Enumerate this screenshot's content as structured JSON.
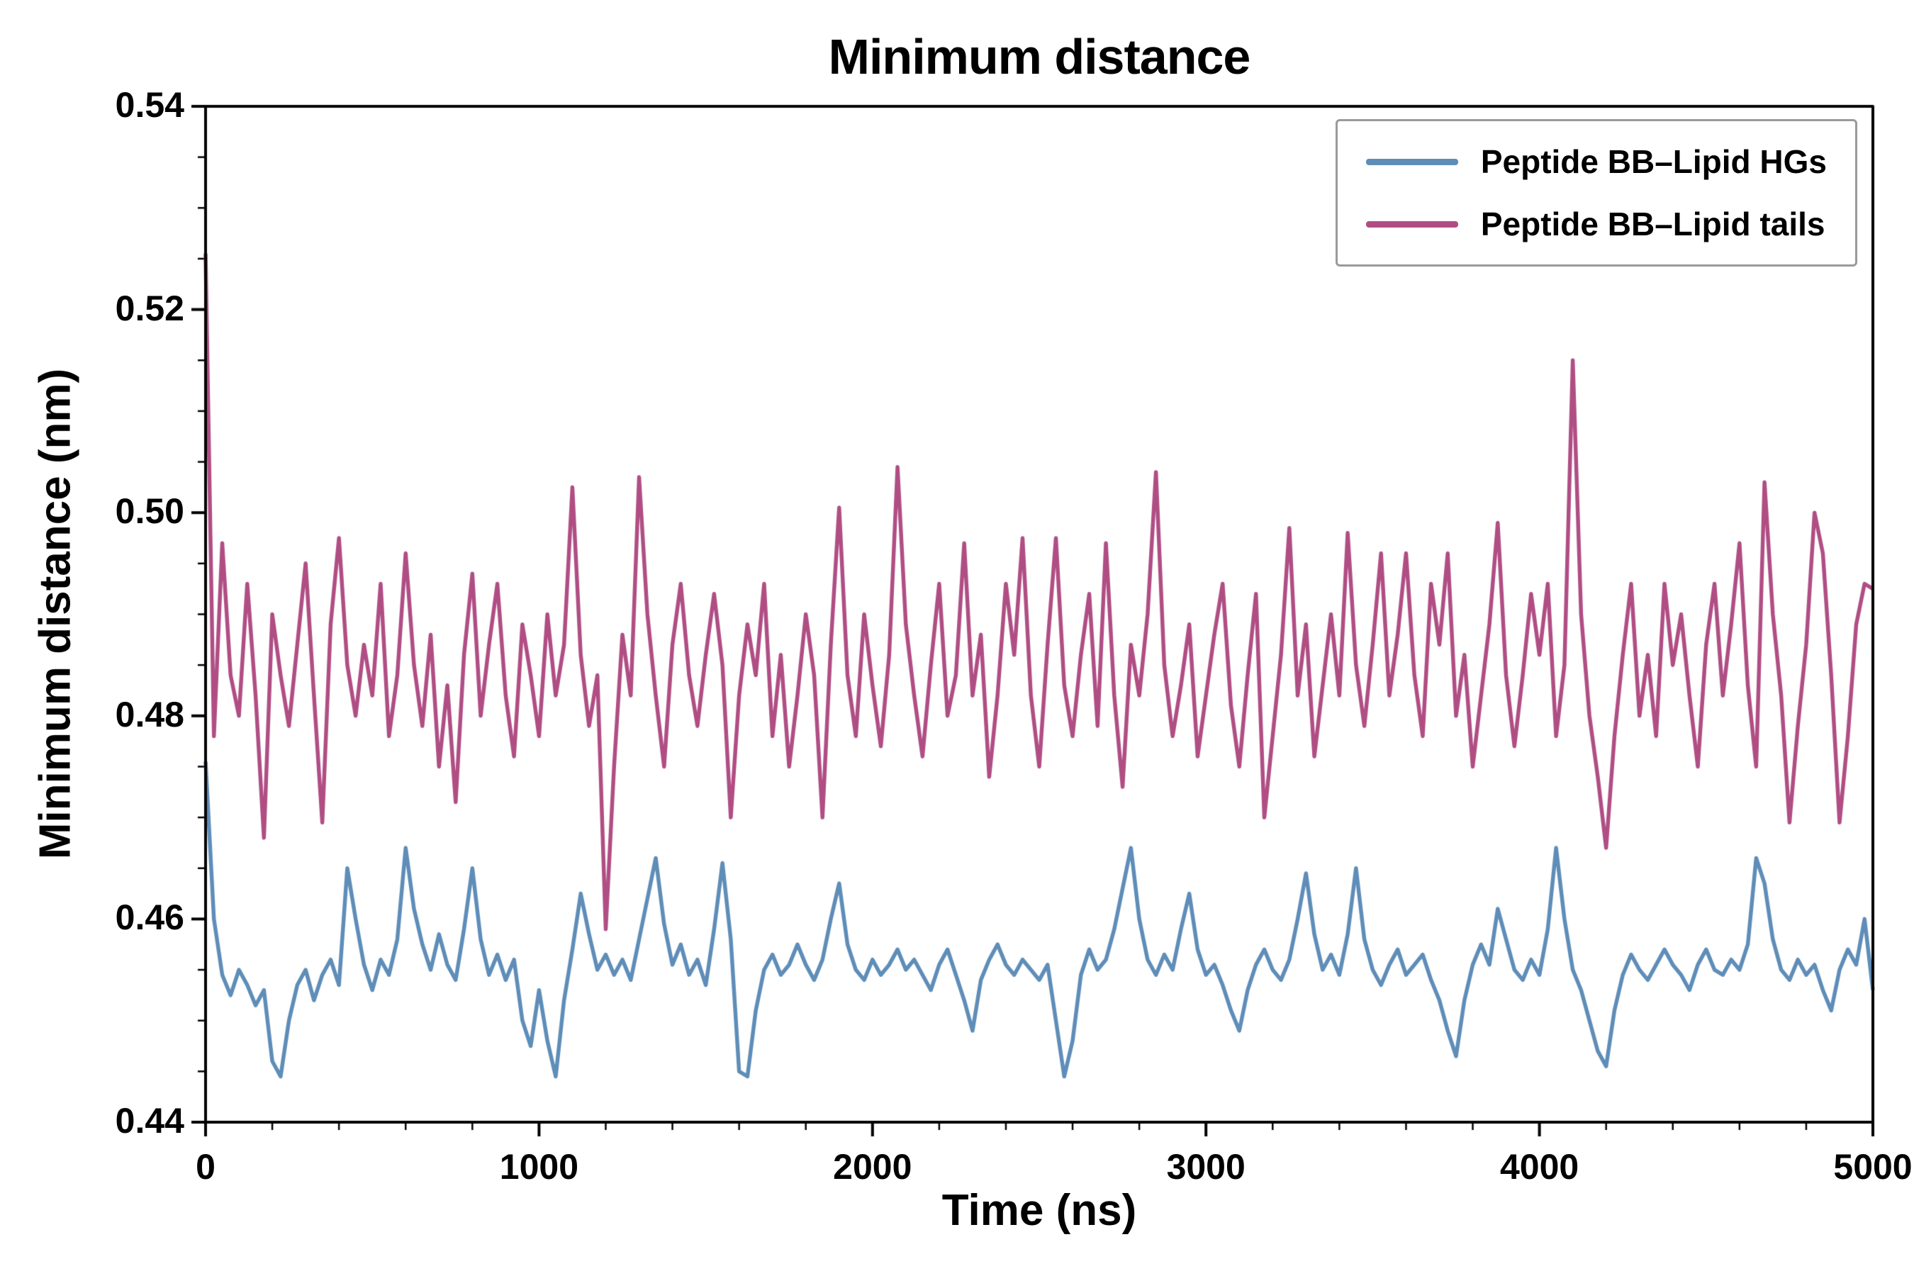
{
  "chart_data": {
    "type": "line",
    "title": "Minimum distance",
    "xlabel": "Time (ns)",
    "ylabel": "Minimum distance (nm)",
    "xlim": [
      0,
      5000
    ],
    "ylim": [
      0.44,
      0.54
    ],
    "x_ticks": [
      0,
      1000,
      2000,
      3000,
      4000,
      5000
    ],
    "y_ticks": [
      0.44,
      0.46,
      0.48,
      0.5,
      0.52,
      0.54
    ],
    "x_minor_step": 200,
    "y_minor_step": 0.005,
    "grid": false,
    "legend_position": "upper right",
    "x_start": 0,
    "x_step": 25,
    "series": [
      {
        "name": "Peptide BB–Lipid HGs",
        "color": "#5e8db8",
        "values": [
          0.4755,
          0.46,
          0.4545,
          0.4525,
          0.455,
          0.4535,
          0.4515,
          0.453,
          0.446,
          0.4445,
          0.45,
          0.4535,
          0.455,
          0.452,
          0.4545,
          0.456,
          0.4535,
          0.465,
          0.46,
          0.4555,
          0.453,
          0.456,
          0.4545,
          0.458,
          0.467,
          0.461,
          0.4575,
          0.455,
          0.4585,
          0.4555,
          0.454,
          0.459,
          0.465,
          0.458,
          0.4545,
          0.4565,
          0.454,
          0.456,
          0.45,
          0.4475,
          0.453,
          0.448,
          0.4445,
          0.452,
          0.457,
          0.4625,
          0.4585,
          0.455,
          0.4565,
          0.4545,
          0.456,
          0.454,
          0.458,
          0.462,
          0.466,
          0.4595,
          0.4555,
          0.4575,
          0.4545,
          0.456,
          0.4535,
          0.459,
          0.4655,
          0.458,
          0.445,
          0.4445,
          0.451,
          0.455,
          0.4565,
          0.4545,
          0.4555,
          0.4575,
          0.4555,
          0.454,
          0.456,
          0.46,
          0.4635,
          0.4575,
          0.455,
          0.454,
          0.456,
          0.4545,
          0.4555,
          0.457,
          0.455,
          0.456,
          0.4545,
          0.453,
          0.4555,
          0.457,
          0.4545,
          0.452,
          0.449,
          0.454,
          0.456,
          0.4575,
          0.4555,
          0.4545,
          0.456,
          0.455,
          0.454,
          0.4555,
          0.45,
          0.4445,
          0.448,
          0.4545,
          0.457,
          0.455,
          0.456,
          0.459,
          0.463,
          0.467,
          0.46,
          0.456,
          0.4545,
          0.4565,
          0.455,
          0.459,
          0.4625,
          0.457,
          0.4545,
          0.4555,
          0.4535,
          0.451,
          0.449,
          0.453,
          0.4555,
          0.457,
          0.455,
          0.454,
          0.456,
          0.46,
          0.4645,
          0.4585,
          0.455,
          0.4565,
          0.4545,
          0.4585,
          0.465,
          0.458,
          0.455,
          0.4535,
          0.4555,
          0.457,
          0.4545,
          0.4555,
          0.4565,
          0.454,
          0.452,
          0.449,
          0.4465,
          0.452,
          0.4555,
          0.4575,
          0.4555,
          0.461,
          0.458,
          0.455,
          0.454,
          0.456,
          0.4545,
          0.459,
          0.467,
          0.46,
          0.455,
          0.453,
          0.45,
          0.447,
          0.4455,
          0.451,
          0.4545,
          0.4565,
          0.455,
          0.454,
          0.4555,
          0.457,
          0.4555,
          0.4545,
          0.453,
          0.4555,
          0.457,
          0.455,
          0.4545,
          0.456,
          0.455,
          0.4575,
          0.466,
          0.4635,
          0.458,
          0.455,
          0.454,
          0.456,
          0.4545,
          0.4555,
          0.453,
          0.451,
          0.455,
          0.457,
          0.4555,
          0.46,
          0.453
        ]
      },
      {
        "name": "Peptide BB–Lipid tails",
        "color": "#b04e84",
        "values": [
          0.5255,
          0.478,
          0.497,
          0.484,
          0.48,
          0.493,
          0.482,
          0.468,
          0.49,
          0.484,
          0.479,
          0.487,
          0.495,
          0.482,
          0.4695,
          0.489,
          0.4975,
          0.485,
          0.48,
          0.487,
          0.482,
          0.493,
          0.478,
          0.484,
          0.496,
          0.485,
          0.479,
          0.488,
          0.475,
          0.483,
          0.4715,
          0.486,
          0.494,
          0.48,
          0.487,
          0.493,
          0.482,
          0.476,
          0.489,
          0.484,
          0.478,
          0.49,
          0.482,
          0.487,
          0.5025,
          0.486,
          0.479,
          0.484,
          0.459,
          0.475,
          0.488,
          0.482,
          0.5035,
          0.49,
          0.482,
          0.475,
          0.487,
          0.493,
          0.484,
          0.479,
          0.486,
          0.492,
          0.485,
          0.47,
          0.482,
          0.489,
          0.484,
          0.493,
          0.478,
          0.486,
          0.475,
          0.482,
          0.49,
          0.484,
          0.47,
          0.487,
          0.5005,
          0.484,
          0.478,
          0.49,
          0.483,
          0.477,
          0.486,
          0.5045,
          0.489,
          0.482,
          0.476,
          0.485,
          0.493,
          0.48,
          0.484,
          0.497,
          0.482,
          0.488,
          0.474,
          0.482,
          0.493,
          0.486,
          0.4975,
          0.482,
          0.475,
          0.487,
          0.4975,
          0.483,
          0.478,
          0.486,
          0.492,
          0.479,
          0.497,
          0.482,
          0.473,
          0.487,
          0.482,
          0.49,
          0.504,
          0.485,
          0.478,
          0.483,
          0.489,
          0.476,
          0.482,
          0.488,
          0.493,
          0.481,
          0.475,
          0.484,
          0.492,
          0.47,
          0.478,
          0.486,
          0.4985,
          0.482,
          0.489,
          0.476,
          0.483,
          0.49,
          0.482,
          0.498,
          0.485,
          0.479,
          0.487,
          0.496,
          0.482,
          0.488,
          0.496,
          0.484,
          0.478,
          0.493,
          0.487,
          0.496,
          0.48,
          0.486,
          0.475,
          0.482,
          0.489,
          0.499,
          0.484,
          0.477,
          0.484,
          0.492,
          0.486,
          0.493,
          0.478,
          0.485,
          0.515,
          0.49,
          0.48,
          0.474,
          0.467,
          0.478,
          0.486,
          0.493,
          0.48,
          0.486,
          0.478,
          0.493,
          0.485,
          0.49,
          0.482,
          0.475,
          0.487,
          0.493,
          0.482,
          0.489,
          0.497,
          0.483,
          0.475,
          0.503,
          0.49,
          0.482,
          0.4695,
          0.479,
          0.487,
          0.5,
          0.496,
          0.484,
          0.4695,
          0.478,
          0.489,
          0.493,
          0.4925
        ]
      }
    ]
  }
}
